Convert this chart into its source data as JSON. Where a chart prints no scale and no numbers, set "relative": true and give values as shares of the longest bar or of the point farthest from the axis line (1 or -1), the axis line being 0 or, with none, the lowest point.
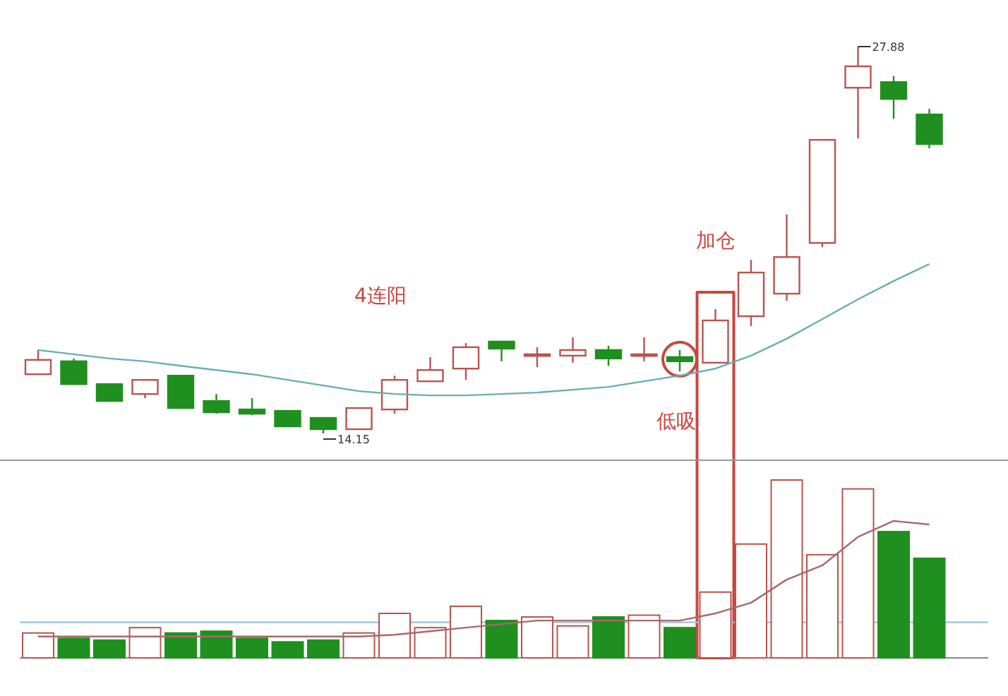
{
  "chart_data": [
    {
      "type": "candlestick",
      "categories": [
        null,
        null,
        null,
        null,
        null,
        null,
        null,
        null,
        null,
        null,
        null,
        null,
        null,
        null,
        null,
        null,
        null,
        null,
        null,
        null,
        null,
        null,
        null,
        null,
        null,
        null
      ],
      "ohlc": [
        [
          16.25,
          17.11,
          16.25,
          16.76
        ],
        [
          16.71,
          16.81,
          15.9,
          15.9
        ],
        [
          15.9,
          15.9,
          15.3,
          15.3
        ],
        [
          15.55,
          16.05,
          15.4,
          16.05
        ],
        [
          16.2,
          16.2,
          15.05,
          15.05
        ],
        [
          15.3,
          15.55,
          14.85,
          14.9
        ],
        [
          15.0,
          15.4,
          14.8,
          14.85
        ],
        [
          14.95,
          14.95,
          14.4,
          14.4
        ],
        [
          14.7,
          14.7,
          14.15,
          14.3
        ],
        [
          14.3,
          15.05,
          14.3,
          15.05
        ],
        [
          15.0,
          16.2,
          14.85,
          16.05
        ],
        [
          16.0,
          16.86,
          16.0,
          16.4
        ],
        [
          16.45,
          17.36,
          16.05,
          17.21
        ],
        [
          17.41,
          17.41,
          16.71,
          17.16
        ],
        [
          16.96,
          17.21,
          16.5,
          16.96
        ],
        [
          16.91,
          17.56,
          16.66,
          17.11
        ],
        [
          17.11,
          17.26,
          16.55,
          16.81
        ],
        [
          16.96,
          17.56,
          16.71,
          16.96
        ],
        [
          16.86,
          17.11,
          16.35,
          16.71
        ],
        [
          16.66,
          18.56,
          16.66,
          18.16
        ],
        [
          18.31,
          20.31,
          17.96,
          19.86
        ],
        [
          19.11,
          21.92,
          18.86,
          20.41
        ],
        [
          20.91,
          24.57,
          20.76,
          24.57
        ],
        [
          26.42,
          27.88,
          24.62,
          27.18
        ],
        [
          26.62,
          26.83,
          25.32,
          26.02
        ],
        [
          25.47,
          25.67,
          24.27,
          24.42
        ]
      ],
      "colors": [
        "#b85450",
        "#1f8f1f",
        "#1f8f1f",
        "#b85450",
        "#1f8f1f",
        "#1f8f1f",
        "#1f8f1f",
        "#1f8f1f",
        "#1f8f1f",
        "#b85450",
        "#b85450",
        "#b85450",
        "#b85450",
        "#1f8f1f",
        "#b85450",
        "#b85450",
        "#1f8f1f",
        "#b85450",
        "#1f8f1f",
        "#b85450",
        "#b85450",
        "#b85450",
        "#b85450",
        "#b85450",
        "#1f8f1f",
        "#1f8f1f"
      ],
      "series": [
        {
          "type": "line",
          "color": "#6aaeb0",
          "values": [
            17.11,
            16.96,
            16.81,
            16.71,
            16.55,
            16.4,
            16.25,
            16.05,
            15.85,
            15.65,
            15.55,
            15.5,
            15.5,
            15.55,
            15.6,
            15.7,
            15.8,
            16.0,
            16.2,
            16.45,
            16.91,
            17.51,
            18.21,
            18.91,
            19.56,
            20.16
          ]
        }
      ],
      "annotations": [
        "27.88",
        "14.15",
        "4连阳",
        "低吸",
        "加仓"
      ]
    },
    {
      "type": "bar",
      "relative": true,
      "categories": [
        null,
        null,
        null,
        null,
        null,
        null,
        null,
        null,
        null,
        null,
        null,
        null,
        null,
        null,
        null,
        null,
        null,
        null,
        null,
        null,
        null,
        null,
        null,
        null,
        null,
        null
      ],
      "series": [
        {
          "type": "bar",
          "colors": [
            "#b85450",
            "#1f8f1f",
            "#1f8f1f",
            "#b85450",
            "#1f8f1f",
            "#1f8f1f",
            "#1f8f1f",
            "#1f8f1f",
            "#1f8f1f",
            "#b85450",
            "#b85450",
            "#b85450",
            "#b85450",
            "#1f8f1f",
            "#b85450",
            "#b85450",
            "#1f8f1f",
            "#b85450",
            "#1f8f1f",
            "#b85450",
            "#b85450",
            "#b85450",
            "#b85450",
            "#b85450",
            "#1f8f1f",
            "#1f8f1f"
          ],
          "values": [
            0.14,
            0.11,
            0.1,
            0.17,
            0.14,
            0.15,
            0.11,
            0.09,
            0.1,
            0.14,
            0.25,
            0.17,
            0.29,
            0.21,
            0.23,
            0.18,
            0.23,
            0.24,
            0.17,
            0.37,
            0.64,
            1,
            0.58,
            0.95,
            0.71,
            0.56
          ]
        },
        {
          "type": "line",
          "color": "#a86a6a",
          "values": [
            0.12,
            0.12,
            0.12,
            0.12,
            0.12,
            0.12,
            0.12,
            0.12,
            0.12,
            0.12,
            0.13,
            0.15,
            0.17,
            0.19,
            0.21,
            0.21,
            0.21,
            0.21,
            0.21,
            0.25,
            0.31,
            0.44,
            0.52,
            0.68,
            0.77,
            0.75
          ]
        }
      ],
      "ref_lines": [
        {
          "axis": "y",
          "value": 0.2,
          "color": "#9cc3d8"
        }
      ]
    }
  ]
}
